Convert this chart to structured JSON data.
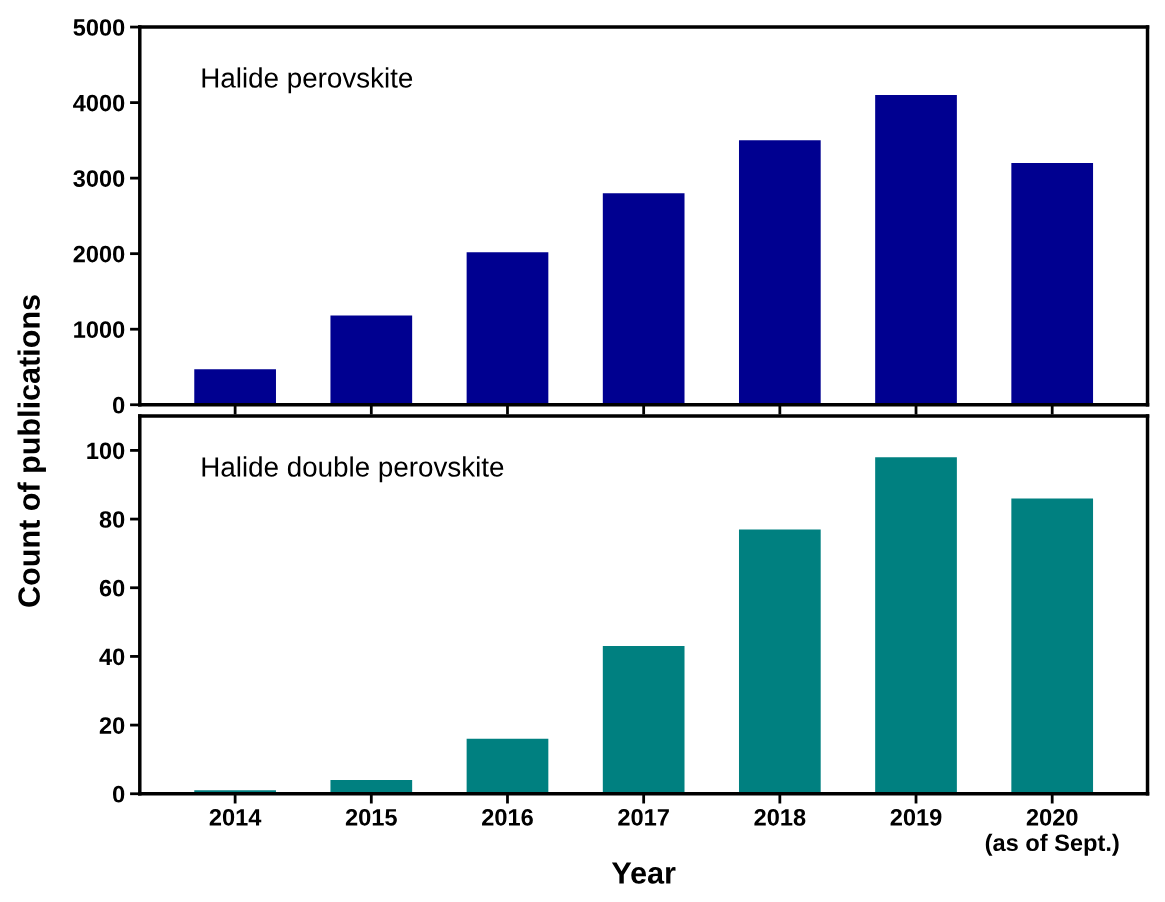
{
  "chart_data": [
    {
      "type": "bar",
      "ylabel": "Count of publications",
      "categories": [
        null,
        null,
        null,
        null,
        null,
        null,
        null
      ],
      "values": [
        470,
        1180,
        2020,
        2800,
        3500,
        4100,
        3200
      ],
      "color": "#000090",
      "ylim": [
        0,
        5000
      ],
      "yticks": [
        0,
        1000,
        2000,
        3000,
        4000,
        5000
      ],
      "tick_labels": "y",
      "annotations": [
        "Halide perovskite"
      ]
    },
    {
      "type": "bar",
      "xlabel": "Year",
      "categories": [
        "2014",
        "2015",
        "2016",
        "2017",
        "2018",
        "2019",
        "2020\n(as of Sept.)"
      ],
      "values": [
        1,
        4,
        16,
        43,
        77,
        98,
        86
      ],
      "color": "#008080",
      "ylim": [
        0,
        110
      ],
      "yticks": [
        0,
        20,
        40,
        60,
        80,
        100
      ],
      "annotations": [
        "Halide double perovskite"
      ]
    }
  ]
}
